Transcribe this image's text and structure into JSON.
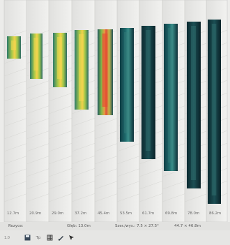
{
  "viewport": {
    "columns": [
      {
        "label": "12.7m"
      },
      {
        "label": "20.9m"
      },
      {
        "label": "29.0m"
      },
      {
        "label": "37.2m"
      },
      {
        "label": "45.4m"
      },
      {
        "label": "53.5m"
      },
      {
        "label": "61.7m"
      },
      {
        "label": "69.8m"
      },
      {
        "label": "78.0m"
      },
      {
        "label": "86.2m"
      }
    ]
  },
  "status": {
    "field1": "Rozyce:",
    "field2": "Glęb: 13.0m",
    "field3": "Szer./wys.:  7.5 × 27.5°",
    "field4": "44.7 × 46.8m"
  },
  "toolbar": {
    "left_text": "1.0",
    "label_text": "Tp",
    "icons": [
      "save-icon",
      "grid-icon",
      "brush-icon",
      "cursor-icon"
    ]
  }
}
